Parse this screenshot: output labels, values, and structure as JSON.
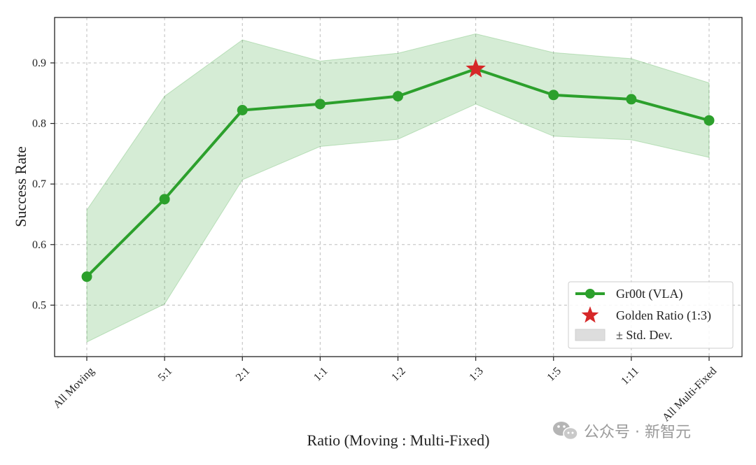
{
  "chart_data": {
    "type": "line",
    "categories": [
      "All Moving",
      "5:1",
      "2:1",
      "1:1",
      "1:2",
      "1:3",
      "1:5",
      "1:11",
      "All Multi-Fixed"
    ],
    "series": [
      {
        "name": "Gr00t (VLA)",
        "values": [
          0.547,
          0.675,
          0.822,
          0.832,
          0.845,
          0.89,
          0.847,
          0.84,
          0.805
        ],
        "color": "#2ca02c"
      }
    ],
    "band": {
      "name": "± Std. Dev.",
      "upper": [
        0.657,
        0.845,
        0.938,
        0.903,
        0.916,
        0.948,
        0.917,
        0.907,
        0.867
      ],
      "lower": [
        0.439,
        0.502,
        0.707,
        0.762,
        0.774,
        0.832,
        0.779,
        0.773,
        0.744
      ],
      "color": "#2ca02c"
    },
    "highlight": {
      "name": "Golden Ratio (1:3)",
      "category": "1:3",
      "value": 0.89,
      "marker": "star",
      "color": "#d62728"
    },
    "xlabel": "Ratio (Moving : Multi-Fixed)",
    "ylabel": "Success Rate",
    "ylim": [
      0.415,
      0.975
    ],
    "yticks": [
      0.5,
      0.6,
      0.7,
      0.8,
      0.9
    ],
    "ytick_labels": [
      "0.5",
      "0.6",
      "0.7",
      "0.8",
      "0.9"
    ],
    "grid": true,
    "legend_position": "bottom-right",
    "legend_entries": [
      "Gr00t (VLA)",
      "Golden Ratio (1:3)",
      "± Std. Dev."
    ]
  },
  "watermark": {
    "icon": "wechat-icon",
    "text": "公众号 · 新智元"
  }
}
